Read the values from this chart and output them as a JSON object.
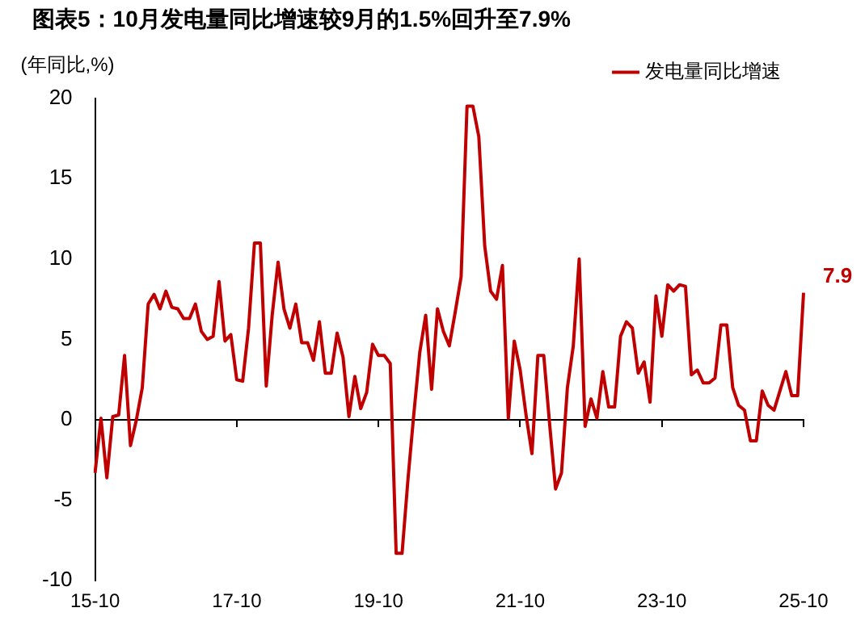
{
  "chart_data": {
    "type": "line",
    "title": "图表5：10月发电量同比增速较9月的1.5%回升至7.9%",
    "ylabel": "(年同比,%)",
    "categories": [
      "15-10",
      null,
      null,
      null,
      null,
      null,
      null,
      null,
      null,
      null,
      null,
      null,
      null,
      null,
      null,
      null,
      null,
      null,
      null,
      null,
      null,
      null,
      null,
      null,
      "17-10",
      null,
      null,
      null,
      null,
      null,
      null,
      null,
      null,
      null,
      null,
      null,
      null,
      null,
      null,
      null,
      null,
      null,
      null,
      null,
      null,
      null,
      null,
      null,
      "19-10",
      null,
      null,
      null,
      null,
      null,
      null,
      null,
      null,
      null,
      null,
      null,
      null,
      null,
      null,
      null,
      null,
      null,
      null,
      null,
      null,
      null,
      null,
      null,
      "21-10",
      null,
      null,
      null,
      null,
      null,
      null,
      null,
      null,
      null,
      null,
      null,
      null,
      null,
      null,
      null,
      null,
      null,
      null,
      null,
      null,
      null,
      null,
      null,
      "23-10",
      null,
      null,
      null,
      null,
      null,
      null,
      null,
      null,
      null,
      null,
      null,
      null,
      null,
      null,
      null,
      null,
      null,
      null,
      null,
      null,
      null,
      null,
      null,
      "25-10"
    ],
    "series": [
      {
        "name": "发电量同比增速",
        "color": "#c00000",
        "values": [
          -3.3,
          0.1,
          -3.6,
          0.2,
          0.3,
          4.0,
          -1.6,
          0.0,
          2.0,
          7.2,
          7.8,
          6.9,
          8.0,
          7.0,
          6.9,
          6.3,
          6.3,
          7.2,
          5.5,
          5.0,
          5.2,
          8.6,
          4.9,
          5.3,
          2.5,
          2.4,
          5.7,
          11.0,
          11.0,
          2.1,
          6.5,
          9.8,
          6.9,
          5.7,
          7.2,
          4.8,
          4.8,
          3.7,
          6.1,
          2.9,
          2.9,
          5.4,
          3.9,
          0.2,
          2.7,
          0.7,
          1.7,
          4.7,
          4.0,
          4.0,
          3.5,
          -8.3,
          -8.3,
          -3.7,
          0.4,
          4.2,
          6.5,
          1.9,
          6.9,
          5.5,
          4.6,
          6.7,
          8.9,
          19.5,
          19.5,
          17.6,
          10.8,
          8.0,
          7.5,
          9.6,
          0.1,
          4.9,
          3.1,
          0.3,
          -2.1,
          4.0,
          4.0,
          -0.3,
          -4.3,
          -3.3,
          2.0,
          4.6,
          10.0,
          -0.4,
          1.3,
          0.1,
          3.0,
          0.8,
          0.8,
          5.2,
          6.1,
          5.7,
          2.9,
          3.6,
          1.1,
          7.7,
          5.2,
          8.4,
          8.0,
          8.4,
          8.3,
          2.8,
          3.1,
          2.3,
          2.3,
          2.6,
          5.9,
          5.9,
          2.0,
          0.9,
          0.6,
          -1.3,
          -1.3,
          1.8,
          0.9,
          0.6,
          1.8,
          3.0,
          1.5,
          1.5,
          7.9
        ]
      }
    ],
    "ylim": [
      -10,
      20
    ],
    "yticks": [
      -10,
      -5,
      0,
      5,
      10,
      15,
      20
    ],
    "grid": false,
    "legend": "top right",
    "marker": "none",
    "line_style": "solid",
    "ref_lines": [
      {
        "axis": "y",
        "value": 0,
        "color": "#000000"
      }
    ],
    "annotations": [
      {
        "text": "7.9",
        "x": "25-10",
        "y": 7.9
      }
    ]
  }
}
